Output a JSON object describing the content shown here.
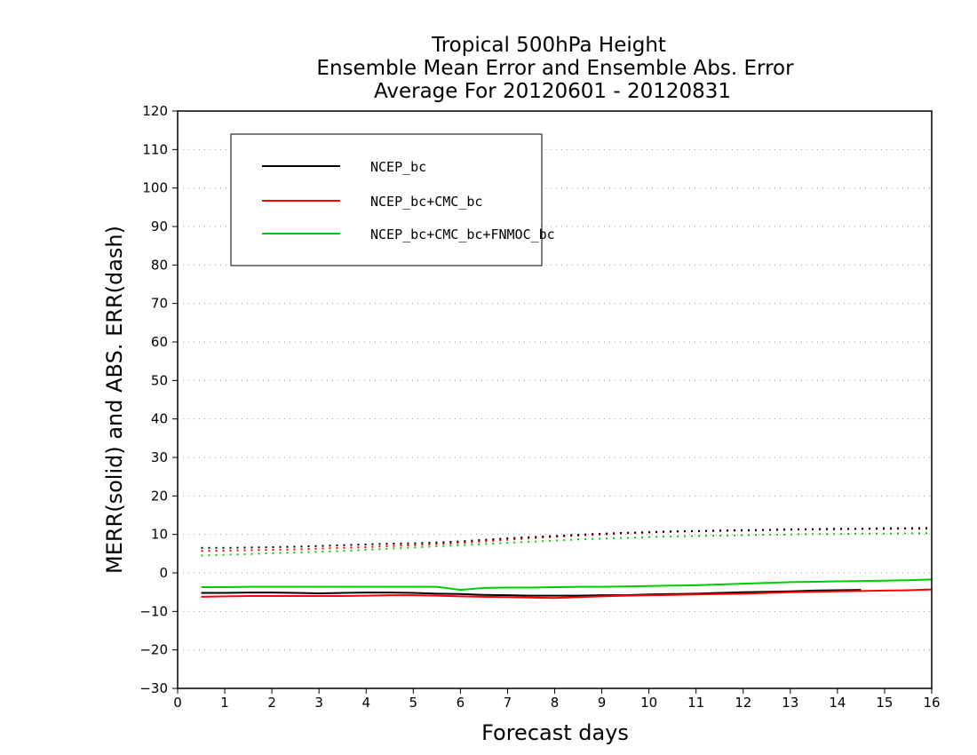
{
  "chart_data": {
    "type": "line",
    "title": [
      "Tropical 500hPa Height",
      "Ensemble Mean Error and Ensemble Abs. Error",
      "Average For 20120601 - 20120831"
    ],
    "xlabel": "Forecast days",
    "ylabel": "MERR(solid) and ABS. ERR(dash)",
    "xlim": [
      0,
      16
    ],
    "ylim": [
      -30,
      120
    ],
    "xticks": [
      "0",
      "1",
      "2",
      "3",
      "4",
      "5",
      "6",
      "7",
      "8",
      "9",
      "10",
      "11",
      "12",
      "13",
      "14",
      "15",
      "16"
    ],
    "yticks": [
      "120",
      "110",
      "100",
      "90",
      "80",
      "70",
      "60",
      "50",
      "40",
      "30",
      "20",
      "10",
      "0",
      "−10",
      "−20",
      "−30"
    ],
    "grid": "horizontal dotted",
    "legend_position": "top-left",
    "x": [
      0.5,
      1,
      1.5,
      2,
      2.5,
      3,
      3.5,
      4,
      4.5,
      5,
      5.5,
      6,
      6.5,
      7,
      7.5,
      8,
      8.5,
      9,
      9.5,
      10,
      10.5,
      11,
      11.5,
      12,
      12.5,
      13,
      13.5,
      14,
      14.5,
      15,
      15.5,
      16
    ],
    "series": [
      {
        "name": "NCEP_bc",
        "color": "#000000",
        "merr": [
          -5.2,
          -5.2,
          -5.1,
          -5.1,
          -5.2,
          -5.3,
          -5.2,
          -5.1,
          -5.1,
          -5.2,
          -5.4,
          -5.5,
          -5.7,
          -5.8,
          -5.9,
          -5.9,
          -5.9,
          -5.8,
          -5.8,
          -5.6,
          -5.5,
          -5.4,
          -5.2,
          -5.0,
          -4.9,
          -4.8,
          -4.6,
          -4.5,
          -4.4,
          null,
          null,
          null
        ],
        "abs_err": [
          6.5,
          6.5,
          6.6,
          6.7,
          6.8,
          7.0,
          7.2,
          7.4,
          7.6,
          7.7,
          7.9,
          8.2,
          8.6,
          9.0,
          9.3,
          9.6,
          9.9,
          10.2,
          10.4,
          10.6,
          10.8,
          10.9,
          11.0,
          11.1,
          11.2,
          11.3,
          11.4,
          11.5,
          11.5,
          11.6,
          11.6,
          11.7
        ]
      },
      {
        "name": "NCEP_bc+CMC_bc",
        "color": "#ff0000",
        "merr": [
          -6.2,
          -6.1,
          -6.0,
          -6.0,
          -6.0,
          -6.0,
          -6.0,
          -5.9,
          -5.8,
          -5.8,
          -5.9,
          -6.1,
          -6.2,
          -6.3,
          -6.4,
          -6.5,
          -6.3,
          -6.1,
          -5.9,
          -5.8,
          -5.7,
          -5.6,
          -5.5,
          -5.4,
          -5.2,
          -5.0,
          -4.9,
          -4.8,
          -4.7,
          -4.6,
          -4.5,
          -4.3
        ]
      },
      {
        "name": "NCEP_bc+CMC_bc+FNMOC_bc",
        "color": "#00cc00",
        "merr": [
          -3.7,
          -3.7,
          -3.6,
          -3.6,
          -3.6,
          -3.6,
          -3.6,
          -3.6,
          -3.6,
          -3.6,
          -3.6,
          -4.4,
          -3.9,
          -3.8,
          -3.8,
          -3.7,
          -3.6,
          -3.6,
          -3.5,
          -3.4,
          -3.3,
          -3.2,
          -3.0,
          -2.8,
          -2.6,
          -2.4,
          -2.3,
          -2.2,
          -2.1,
          -2.0,
          -1.9,
          -1.7
        ],
        "abs_err": [
          4.5,
          4.7,
          4.9,
          5.1,
          5.3,
          5.5,
          5.7,
          6.0,
          6.3,
          6.6,
          6.9,
          7.2,
          7.5,
          7.8,
          8.1,
          8.4,
          8.7,
          8.9,
          9.1,
          9.3,
          9.5,
          9.6,
          9.7,
          9.8,
          9.9,
          10.0,
          10.1,
          10.1,
          10.2,
          10.2,
          10.3,
          10.3
        ]
      }
    ],
    "red_abs_err": [
      5.7,
      5.8,
      5.9,
      6.0,
      6.1,
      6.3,
      6.5,
      6.7,
      7.0,
      7.2,
      7.5,
      7.8,
      8.2,
      8.6,
      9.0,
      9.4,
      9.7,
      10.0,
      10.3,
      10.5,
      10.7,
      10.8,
      10.9,
      11.0,
      11.1,
      11.2,
      11.3,
      11.3,
      11.4,
      11.4,
      11.5,
      11.5
    ]
  }
}
